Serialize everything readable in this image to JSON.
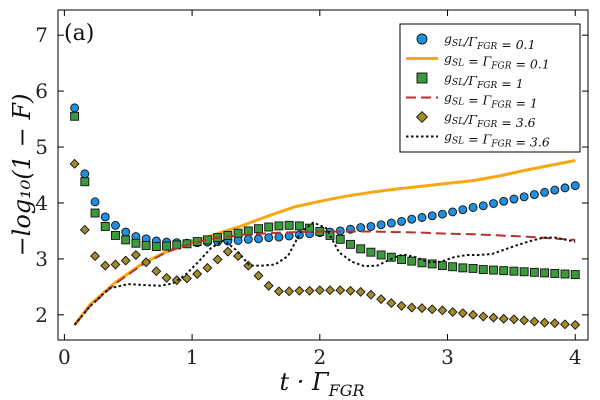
{
  "chart_data": {
    "type": "scatter",
    "panel_label": "(a)",
    "xlabel": "t · Γ_FGR",
    "ylabel": "−log₁₀(1 − F)",
    "xlim": [
      -0.05,
      4.1
    ],
    "ylim": [
      1.55,
      7.45
    ],
    "xticks": [
      0,
      1,
      2,
      3,
      4
    ],
    "yticks": [
      2,
      3,
      4,
      5,
      6,
      7
    ],
    "grid": false,
    "legend_position": "top-right",
    "series": [
      {
        "name": "g_SL/Γ_FGR = 0.1",
        "kind": "markers",
        "marker": "circle",
        "color": "#1f8fe0",
        "x": [
          0.08,
          0.16,
          0.24,
          0.32,
          0.4,
          0.48,
          0.56,
          0.64,
          0.72,
          0.8,
          0.88,
          0.96,
          1.04,
          1.12,
          1.2,
          1.28,
          1.36,
          1.44,
          1.52,
          1.6,
          1.68,
          1.76,
          1.84,
          1.92,
          2.0,
          2.08,
          2.16,
          2.24,
          2.32,
          2.4,
          2.48,
          2.56,
          2.64,
          2.72,
          2.8,
          2.88,
          2.96,
          3.04,
          3.12,
          3.2,
          3.28,
          3.36,
          3.44,
          3.52,
          3.6,
          3.68,
          3.76,
          3.84,
          3.92,
          4.0
        ],
        "y": [
          5.7,
          4.52,
          4.02,
          3.75,
          3.6,
          3.48,
          3.4,
          3.36,
          3.32,
          3.3,
          3.29,
          3.28,
          3.29,
          3.3,
          3.31,
          3.32,
          3.33,
          3.35,
          3.36,
          3.38,
          3.39,
          3.41,
          3.43,
          3.45,
          3.47,
          3.48,
          3.5,
          3.53,
          3.56,
          3.58,
          3.61,
          3.64,
          3.67,
          3.71,
          3.74,
          3.77,
          3.8,
          3.84,
          3.88,
          3.92,
          3.95,
          3.99,
          4.03,
          4.07,
          4.11,
          4.15,
          4.19,
          4.23,
          4.27,
          4.31
        ]
      },
      {
        "name": "g_SL = Γ_FGR = 0.1",
        "kind": "line",
        "dash": "solid",
        "color": "#f7a70f",
        "x": [
          0.08,
          0.2,
          0.4,
          0.6,
          0.8,
          1.0,
          1.2,
          1.4,
          1.6,
          1.8,
          2.0,
          2.2,
          2.4,
          2.6,
          2.8,
          3.0,
          3.2,
          3.4,
          3.6,
          3.8,
          4.0
        ],
        "y": [
          1.82,
          2.18,
          2.58,
          2.9,
          3.13,
          3.3,
          3.45,
          3.6,
          3.77,
          3.93,
          4.03,
          4.12,
          4.19,
          4.25,
          4.3,
          4.35,
          4.4,
          4.48,
          4.58,
          4.67,
          4.76
        ]
      },
      {
        "name": "g_SL/Γ_FGR = 1",
        "kind": "markers",
        "marker": "square",
        "color": "#3a9a3c",
        "x": [
          0.08,
          0.16,
          0.24,
          0.32,
          0.4,
          0.48,
          0.56,
          0.64,
          0.72,
          0.8,
          0.88,
          0.96,
          1.04,
          1.12,
          1.2,
          1.28,
          1.36,
          1.44,
          1.52,
          1.6,
          1.68,
          1.76,
          1.84,
          1.92,
          2.0,
          2.08,
          2.16,
          2.24,
          2.32,
          2.4,
          2.48,
          2.56,
          2.64,
          2.72,
          2.8,
          2.88,
          2.96,
          3.04,
          3.12,
          3.2,
          3.28,
          3.36,
          3.44,
          3.52,
          3.6,
          3.68,
          3.76,
          3.84,
          3.92,
          4.0
        ],
        "y": [
          5.55,
          4.38,
          3.82,
          3.58,
          3.42,
          3.34,
          3.28,
          3.24,
          3.22,
          3.23,
          3.25,
          3.27,
          3.31,
          3.34,
          3.38,
          3.42,
          3.46,
          3.5,
          3.54,
          3.57,
          3.59,
          3.6,
          3.59,
          3.55,
          3.49,
          3.42,
          3.35,
          3.26,
          3.18,
          3.12,
          3.07,
          3.03,
          2.99,
          2.96,
          2.93,
          2.91,
          2.88,
          2.86,
          2.84,
          2.83,
          2.81,
          2.8,
          2.79,
          2.78,
          2.77,
          2.76,
          2.75,
          2.74,
          2.73,
          2.72
        ]
      },
      {
        "name": "g_SL = Γ_FGR = 1",
        "kind": "line",
        "dash": "dashed",
        "color": "#b83228",
        "x": [
          0.08,
          0.2,
          0.4,
          0.6,
          0.8,
          1.0,
          1.2,
          1.4,
          1.6,
          1.8,
          2.0,
          2.2,
          2.4,
          2.6,
          2.8,
          3.0,
          3.2,
          3.4,
          3.6,
          3.8,
          4.0
        ],
        "y": [
          1.82,
          2.15,
          2.56,
          2.88,
          3.12,
          3.28,
          3.38,
          3.43,
          3.46,
          3.48,
          3.49,
          3.49,
          3.49,
          3.48,
          3.47,
          3.45,
          3.44,
          3.42,
          3.4,
          3.37,
          3.34
        ]
      },
      {
        "name": "g_SL/Γ_FGR = 3.6",
        "kind": "markers",
        "marker": "diamond",
        "color": "#a38b2c",
        "x": [
          0.08,
          0.16,
          0.24,
          0.32,
          0.4,
          0.48,
          0.56,
          0.64,
          0.72,
          0.8,
          0.88,
          0.96,
          1.04,
          1.12,
          1.2,
          1.28,
          1.36,
          1.44,
          1.52,
          1.6,
          1.68,
          1.76,
          1.84,
          1.92,
          2.0,
          2.08,
          2.16,
          2.24,
          2.32,
          2.4,
          2.48,
          2.56,
          2.64,
          2.72,
          2.8,
          2.88,
          2.96,
          3.04,
          3.12,
          3.2,
          3.28,
          3.36,
          3.44,
          3.52,
          3.6,
          3.68,
          3.76,
          3.84,
          3.92,
          4.0
        ],
        "y": [
          4.7,
          3.52,
          3.05,
          2.88,
          2.9,
          2.97,
          3.07,
          2.94,
          2.78,
          2.66,
          2.62,
          2.65,
          2.73,
          2.84,
          2.99,
          3.13,
          3.05,
          2.88,
          2.7,
          2.52,
          2.42,
          2.42,
          2.43,
          2.43,
          2.44,
          2.44,
          2.44,
          2.43,
          2.41,
          2.36,
          2.28,
          2.21,
          2.16,
          2.13,
          2.12,
          2.1,
          2.08,
          2.05,
          2.03,
          2.0,
          1.97,
          1.95,
          1.93,
          1.92,
          1.9,
          1.88,
          1.86,
          1.85,
          1.83,
          1.82
        ]
      },
      {
        "name": "g_SL = Γ_FGR = 3.6",
        "kind": "line",
        "dash": "dotted",
        "color": "#111111",
        "x": [
          0.08,
          0.2,
          0.35,
          0.5,
          0.65,
          0.75,
          0.85,
          0.95,
          1.05,
          1.15,
          1.25,
          1.35,
          1.45,
          1.55,
          1.65,
          1.75,
          1.85,
          1.95,
          2.05,
          2.15,
          2.25,
          2.35,
          2.45,
          2.55,
          2.65,
          2.75,
          2.85,
          2.95,
          3.05,
          3.15,
          3.25,
          3.35,
          3.45,
          3.55,
          3.65,
          3.75,
          3.85,
          3.95,
          4.0
        ],
        "y": [
          1.82,
          2.15,
          2.47,
          2.55,
          2.53,
          2.52,
          2.56,
          2.72,
          2.95,
          3.2,
          3.33,
          3.15,
          2.88,
          2.88,
          2.9,
          3.05,
          3.48,
          3.65,
          3.55,
          3.12,
          2.95,
          2.87,
          2.88,
          2.99,
          3.08,
          3.03,
          2.94,
          2.95,
          3.03,
          3.07,
          3.07,
          3.09,
          3.17,
          3.25,
          3.32,
          3.38,
          3.38,
          3.33,
          3.31
        ]
      }
    ]
  }
}
